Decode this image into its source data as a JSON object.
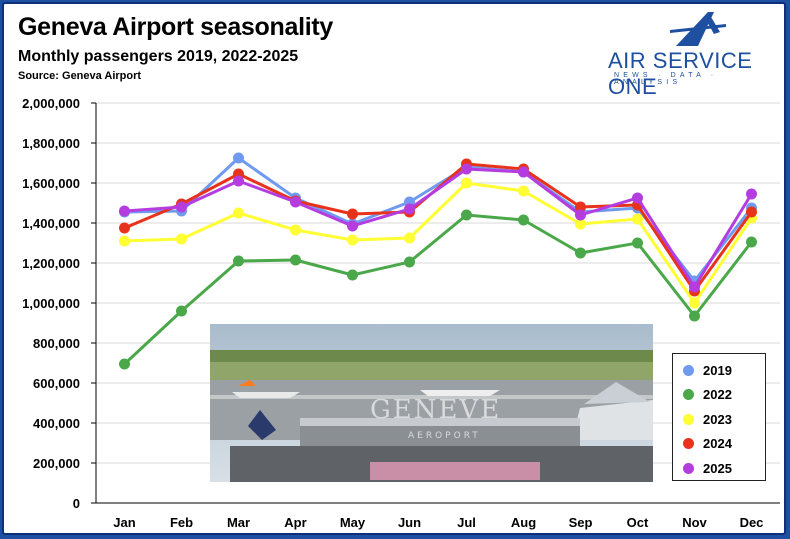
{
  "header": {
    "title": "Geneva Airport seasonality",
    "subtitle": "Monthly passengers 2019, 2022-2025",
    "source": "Source: Geneva Airport"
  },
  "brand": {
    "name": "AIR SERVICE ONE",
    "tagline": "NEWS · DATA · ANALYSIS",
    "logo_icon": "stylized-a-airplane-logo-icon",
    "color": "#1f4fa0"
  },
  "photo": {
    "sign_text": "GENEVE",
    "sign_subtext": "AEROPORT"
  },
  "chart_data": {
    "type": "line",
    "title": "Geneva Airport seasonality",
    "subtitle": "Monthly passengers 2019, 2022-2025",
    "xlabel": "",
    "ylabel": "",
    "ylim": [
      0,
      2000000
    ],
    "yticks": [
      "0",
      "200,000",
      "400,000",
      "600,000",
      "800,000",
      "1,000,000",
      "1,200,000",
      "1,400,000",
      "1,600,000",
      "1,800,000",
      "2,000,000"
    ],
    "categories": [
      "Jan",
      "Feb",
      "Mar",
      "Apr",
      "May",
      "Jun",
      "Jul",
      "Aug",
      "Sep",
      "Oct",
      "Nov",
      "Dec"
    ],
    "grid": true,
    "legend_position": "bottom-right",
    "series": [
      {
        "name": "2019",
        "color": "#6f9af0",
        "values": [
          1455000,
          1460000,
          1725000,
          1525000,
          1395000,
          1505000,
          1680000,
          1655000,
          1455000,
          1475000,
          1110000,
          1475000
        ]
      },
      {
        "name": "2022",
        "color": "#4aa84a",
        "values": [
          695000,
          960000,
          1210000,
          1215000,
          1140000,
          1205000,
          1440000,
          1415000,
          1250000,
          1300000,
          935000,
          1305000
        ]
      },
      {
        "name": "2023",
        "color": "#ffff33",
        "values": [
          1310000,
          1320000,
          1450000,
          1365000,
          1315000,
          1325000,
          1600000,
          1560000,
          1395000,
          1420000,
          1000000,
          1425000
        ]
      },
      {
        "name": "2024",
        "color": "#e8331c",
        "values": [
          1375000,
          1495000,
          1645000,
          1510000,
          1445000,
          1455000,
          1695000,
          1670000,
          1480000,
          1490000,
          1060000,
          1455000
        ]
      },
      {
        "name": "2025",
        "color": "#b53de0",
        "values": [
          1460000,
          1480000,
          1610000,
          1505000,
          1385000,
          1470000,
          1670000,
          1655000,
          1440000,
          1525000,
          1080000,
          1545000
        ]
      }
    ]
  }
}
